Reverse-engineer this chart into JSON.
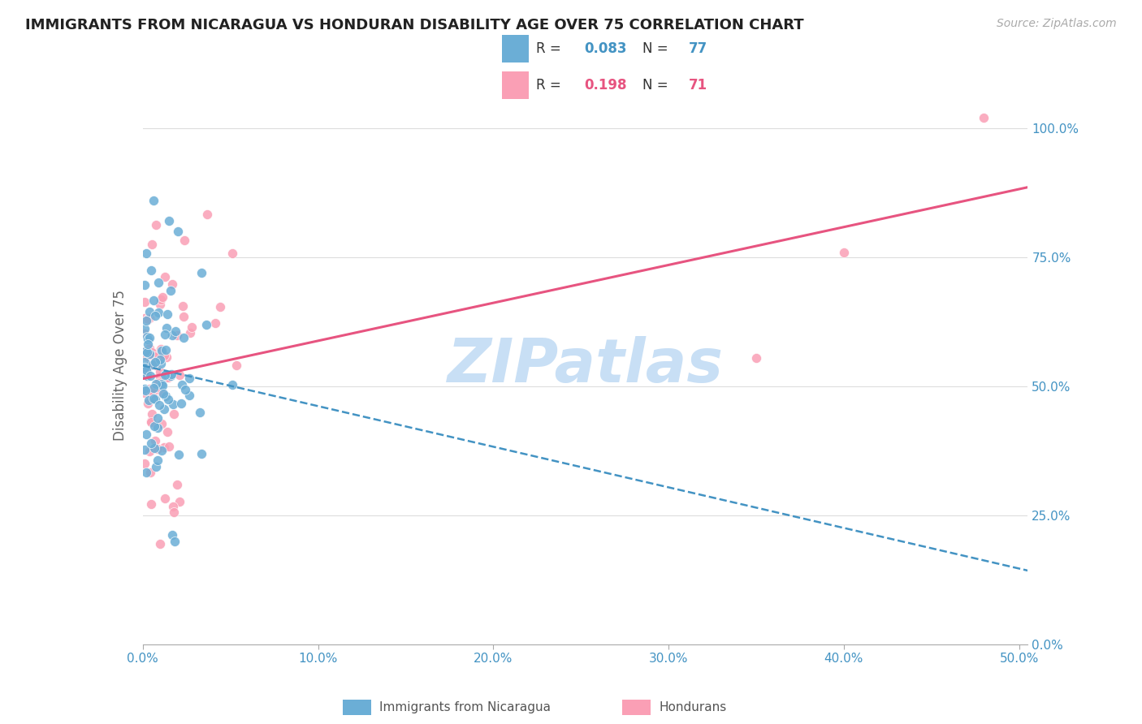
{
  "title": "IMMIGRANTS FROM NICARAGUA VS HONDURAN DISABILITY AGE OVER 75 CORRELATION CHART",
  "source": "Source: ZipAtlas.com",
  "ylabel": "Disability Age Over 75",
  "legend_label1": "Immigrants from Nicaragua",
  "legend_label2": "Hondurans",
  "R1": 0.083,
  "N1": 77,
  "R2": 0.198,
  "N2": 71,
  "color_blue": "#6baed6",
  "color_pink": "#fa9fb5",
  "color_blue_text": "#4393c3",
  "color_pink_text": "#e75480",
  "watermark": "ZIPatlas",
  "watermark_color": "#c8dff5",
  "xlim": [
    0.0,
    0.505
  ],
  "ylim": [
    0.0,
    1.08
  ],
  "xticks": [
    0.0,
    0.1,
    0.2,
    0.3,
    0.4,
    0.5
  ],
  "xticklabels": [
    "0.0%",
    "10.0%",
    "20.0%",
    "30.0%",
    "40.0%",
    "50.0%"
  ],
  "yticks": [
    0.0,
    0.25,
    0.5,
    0.75,
    1.0
  ],
  "yticklabels": [
    "0.0%",
    "25.0%",
    "50.0%",
    "75.0%",
    "100.0%"
  ]
}
